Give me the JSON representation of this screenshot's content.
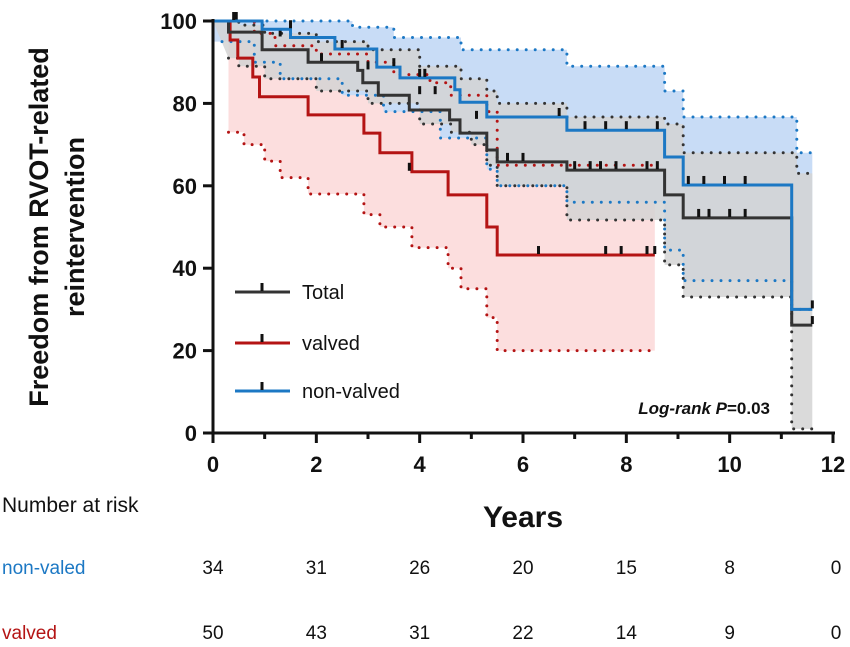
{
  "chart_data": {
    "type": "line",
    "subtype": "kaplan-meier",
    "title": "",
    "xlabel": "Years",
    "ylabel": "Freedom from RVOT-related reintervention",
    "ylabel_lines": [
      "Freedom from RVOT-related",
      "reintervention"
    ],
    "xlim": [
      0,
      12
    ],
    "ylim": [
      0,
      100
    ],
    "xticks": [
      0,
      2,
      4,
      6,
      8,
      10,
      12
    ],
    "yticks": [
      0,
      20,
      40,
      60,
      80,
      100
    ],
    "grid": false,
    "legend_placement": "bottom-left",
    "annotation": {
      "prefix": "Log-rank ",
      "p": "P",
      "value": "=0.03"
    },
    "series": [
      {
        "name": "Total",
        "color": "#333333",
        "fill": "#d4d4d4",
        "steps": [
          [
            0,
            100
          ],
          [
            0.3,
            97.3
          ],
          [
            0.95,
            93
          ],
          [
            1.84,
            90
          ],
          [
            2.8,
            88
          ],
          [
            2.9,
            85
          ],
          [
            3.2,
            82
          ],
          [
            3.8,
            78.4
          ],
          [
            4.58,
            76
          ],
          [
            4.78,
            72.8
          ],
          [
            5.3,
            68.7
          ],
          [
            5.5,
            65.8
          ],
          [
            6.85,
            63.8
          ],
          [
            8.74,
            57.8
          ],
          [
            9.1,
            52.2
          ],
          [
            11.2,
            26.2
          ],
          [
            11.6,
            26.2
          ]
        ],
        "ci_upper": [
          [
            0,
            100
          ],
          [
            0.5,
            99
          ],
          [
            1,
            97
          ],
          [
            2,
            95
          ],
          [
            3,
            93
          ],
          [
            4,
            89
          ],
          [
            4.8,
            86
          ],
          [
            5.3,
            83
          ],
          [
            5.5,
            80
          ],
          [
            6.85,
            76.7
          ],
          [
            8.74,
            75
          ],
          [
            9.1,
            68
          ],
          [
            11.3,
            63
          ],
          [
            11.6,
            63
          ]
        ],
        "ci_lower": [
          [
            0.3,
            91
          ],
          [
            0.5,
            89
          ],
          [
            1,
            86
          ],
          [
            2,
            83
          ],
          [
            3,
            80
          ],
          [
            4,
            75
          ],
          [
            4.6,
            73
          ],
          [
            5,
            70
          ],
          [
            5.3,
            65
          ],
          [
            5.5,
            60
          ],
          [
            6.85,
            51.7
          ],
          [
            8.74,
            40.8
          ],
          [
            9.1,
            33
          ],
          [
            11.2,
            1
          ],
          [
            11.6,
            1
          ]
        ],
        "censored": [
          [
            0.45,
            100
          ],
          [
            1.3,
            96
          ],
          [
            2.1,
            90
          ],
          [
            3.0,
            88
          ],
          [
            4.0,
            82
          ],
          [
            4.3,
            82
          ],
          [
            5.1,
            76
          ],
          [
            5.7,
            65.8
          ],
          [
            6.0,
            65.8
          ],
          [
            7.0,
            63.8
          ],
          [
            7.3,
            63.8
          ],
          [
            7.5,
            63.8
          ],
          [
            7.8,
            63.8
          ],
          [
            8.4,
            63.8
          ],
          [
            8.6,
            63.8
          ],
          [
            9.4,
            52.2
          ],
          [
            9.6,
            52.2
          ],
          [
            10.0,
            52.2
          ],
          [
            10.3,
            52.2
          ],
          [
            11.6,
            26.2
          ]
        ]
      },
      {
        "name": "valved",
        "color": "#b41414",
        "fill": "#fcdede",
        "steps": [
          [
            0.3,
            100
          ],
          [
            0.33,
            95.4
          ],
          [
            0.48,
            91
          ],
          [
            0.77,
            86.4
          ],
          [
            0.9,
            81.6
          ],
          [
            1.84,
            77.2
          ],
          [
            2.92,
            72.8
          ],
          [
            3.23,
            68
          ],
          [
            3.85,
            63.4
          ],
          [
            4.55,
            57.8
          ],
          [
            5.3,
            50
          ],
          [
            5.5,
            43.2
          ],
          [
            8.55,
            43.2
          ]
        ],
        "ci_upper": [
          [
            0.3,
            100
          ],
          [
            0.8,
            97
          ],
          [
            1.2,
            94
          ],
          [
            2,
            92
          ],
          [
            3,
            90
          ],
          [
            3.5,
            87
          ],
          [
            4.2,
            85
          ],
          [
            4.6,
            82
          ],
          [
            5.3,
            78
          ],
          [
            5.5,
            65
          ],
          [
            8.55,
            65
          ]
        ],
        "ci_lower": [
          [
            0.3,
            73
          ],
          [
            0.6,
            70
          ],
          [
            1,
            66
          ],
          [
            1.3,
            62
          ],
          [
            1.84,
            58
          ],
          [
            2.92,
            53
          ],
          [
            3.23,
            50
          ],
          [
            3.85,
            45
          ],
          [
            4.55,
            40
          ],
          [
            4.8,
            35
          ],
          [
            5.3,
            28
          ],
          [
            5.5,
            20
          ],
          [
            8.55,
            20
          ]
        ],
        "censored": [
          [
            3.8,
            63.4
          ],
          [
            6.3,
            43.2
          ],
          [
            7.6,
            43.2
          ],
          [
            7.9,
            43.2
          ],
          [
            8.4,
            43.2
          ],
          [
            8.55,
            43.2
          ]
        ]
      },
      {
        "name": "non-valved",
        "color": "#1c78c4",
        "fill": "#c8dcf6",
        "steps": [
          [
            0,
            100
          ],
          [
            0.95,
            98
          ],
          [
            1.5,
            96
          ],
          [
            2.36,
            93.2
          ],
          [
            3.17,
            88.8
          ],
          [
            3.62,
            86.2
          ],
          [
            4.68,
            83.3
          ],
          [
            4.78,
            80.3
          ],
          [
            5.3,
            76.7
          ],
          [
            6.85,
            73.5
          ],
          [
            8.74,
            67
          ],
          [
            9.1,
            60.2
          ],
          [
            11.2,
            30
          ],
          [
            11.6,
            30
          ]
        ],
        "ci_upper": [
          [
            0,
            100
          ],
          [
            2.7,
            98.5
          ],
          [
            3.5,
            96
          ],
          [
            4.8,
            93
          ],
          [
            6.85,
            89
          ],
          [
            8.74,
            83
          ],
          [
            9.1,
            76.7
          ],
          [
            11.3,
            68
          ],
          [
            11.6,
            68
          ]
        ],
        "ci_lower": [
          [
            0,
            95
          ],
          [
            0.8,
            90
          ],
          [
            1.3,
            86
          ],
          [
            2.5,
            82
          ],
          [
            3.3,
            78
          ],
          [
            4.4,
            71.6
          ],
          [
            5.3,
            64
          ],
          [
            5.5,
            60
          ],
          [
            6.85,
            56
          ],
          [
            8.74,
            44.4
          ],
          [
            9.1,
            37
          ],
          [
            11.2,
            30
          ],
          [
            11.6,
            30
          ]
        ],
        "censored": [
          [
            0.4,
            100
          ],
          [
            1.5,
            98
          ],
          [
            2.5,
            93.2
          ],
          [
            3.5,
            88.8
          ],
          [
            4.0,
            86.2
          ],
          [
            4.1,
            86.2
          ],
          [
            6.7,
            76.7
          ],
          [
            7.2,
            73.5
          ],
          [
            7.6,
            73.5
          ],
          [
            8.0,
            73.5
          ],
          [
            8.6,
            73.5
          ],
          [
            9.2,
            60.2
          ],
          [
            9.5,
            60.2
          ],
          [
            9.9,
            60.2
          ],
          [
            10.3,
            60.2
          ],
          [
            11.6,
            30
          ]
        ]
      }
    ],
    "risk_table": {
      "title": "Number at risk",
      "times": [
        0,
        2,
        4,
        6,
        8,
        10,
        12
      ],
      "rows": [
        {
          "label": "non-valed",
          "color": "#1c78c4",
          "values": [
            34,
            31,
            26,
            20,
            15,
            8,
            0
          ]
        },
        {
          "label": "valved",
          "color": "#b41414",
          "values": [
            50,
            43,
            31,
            22,
            14,
            9,
            0
          ]
        }
      ]
    }
  }
}
